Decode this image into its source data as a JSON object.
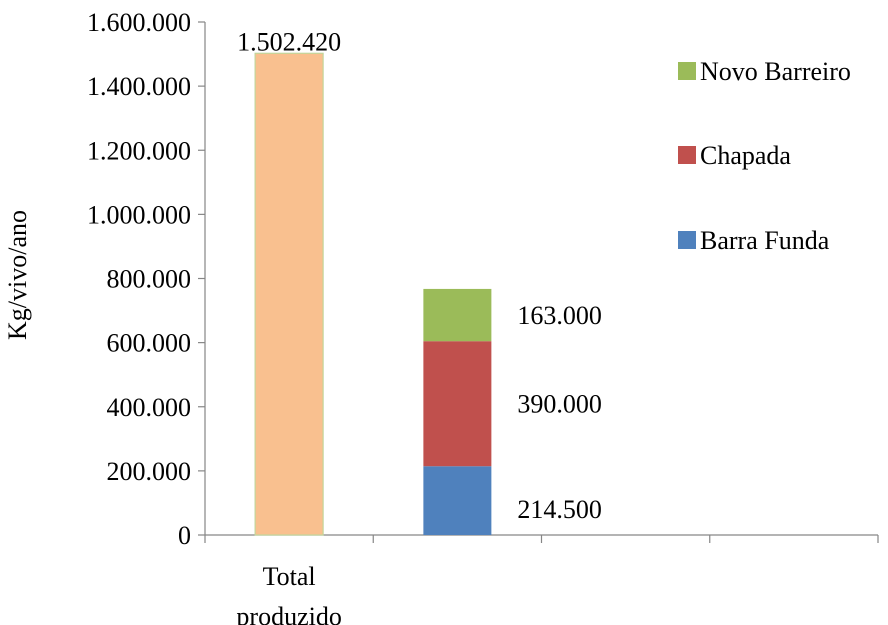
{
  "chart_data": {
    "type": "bar",
    "ylabel": "Kg/vivo/ano",
    "ylim": [
      0,
      1600000
    ],
    "yticks": [
      0,
      200000,
      400000,
      600000,
      800000,
      1000000,
      1200000,
      1400000,
      1600000
    ],
    "ytick_labels": [
      "0",
      "200.000",
      "400.000",
      "600.000",
      "800.000",
      "1.000.000",
      "1.200.000",
      "1.400.000",
      "1.600.000"
    ],
    "categories": [
      {
        "lines": [
          "Total",
          "produzido"
        ]
      },
      {
        "lines": []
      },
      {
        "lines": []
      },
      {
        "lines": []
      }
    ],
    "total_bar": {
      "category_index": 0,
      "value": 1502420,
      "label": "1.502.420",
      "color": "#F9C08F"
    },
    "stacked_bar": {
      "category_index": 1,
      "series": [
        {
          "name": "Barra Funda",
          "value": 214500,
          "label": "214.500",
          "color": "#4F81BD"
        },
        {
          "name": "Chapada",
          "value": 390000,
          "label": "390.000",
          "color": "#C0504D"
        },
        {
          "name": "Novo Barreiro",
          "value": 163000,
          "label": "163.000",
          "color": "#9BBB59"
        }
      ]
    },
    "legend": {
      "position": "right",
      "order": [
        "Novo Barreiro",
        "Chapada",
        "Barra Funda"
      ]
    },
    "grid": false
  }
}
